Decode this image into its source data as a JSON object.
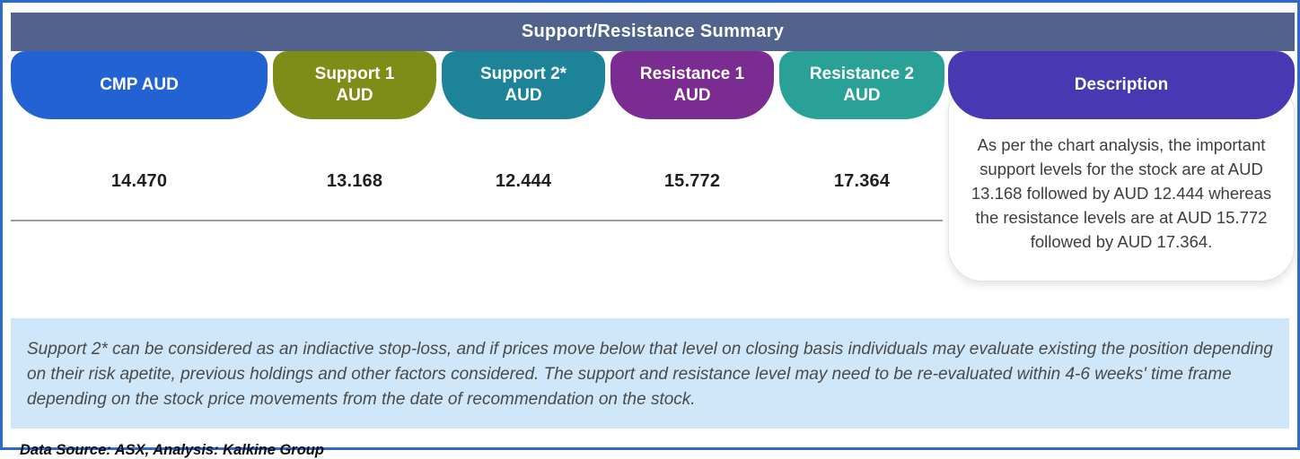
{
  "header": {
    "title": "Support/Resistance Summary"
  },
  "columns": [
    {
      "label": "CMP AUD",
      "sublabel": "",
      "color": "#2262d3",
      "value": "14.470"
    },
    {
      "label": "Support 1",
      "sublabel": "AUD",
      "color": "#7e8d17",
      "value": "13.168"
    },
    {
      "label": "Support 2*",
      "sublabel": "AUD",
      "color": "#1c8399",
      "value": "12.444"
    },
    {
      "label": "Resistance 1",
      "sublabel": "AUD",
      "color": "#7b2c91",
      "value": "15.772"
    },
    {
      "label": "Resistance 2",
      "sublabel": "AUD",
      "color": "#29a196",
      "value": "17.364"
    }
  ],
  "description": {
    "label": "Description",
    "color": "#4838b2",
    "text": "As per the chart analysis, the important support levels for the stock are at AUD 13.168 followed by AUD 12.444 whereas the resistance levels are at AUD 15.772 followed by AUD 17.364."
  },
  "disclaimer": "Support 2* can be considered as an indiactive stop-loss, and if prices move below that level on closing basis individuals may evaluate existing the position depending on their risk apetite, previous holdings and other factors considered. The support and resistance level may need to be re-evaluated within 4-6 weeks' time frame depending on the stock price movements from  the date of recommendation on the stock.",
  "data_source": "Data Source: ASX, Analysis: Kalkine Group",
  "colors": {
    "frame_border": "#2e6ace",
    "header_bar": "#51628c",
    "disclaimer_bg": "#cfe7f8",
    "divider": "#9c9c9c"
  }
}
